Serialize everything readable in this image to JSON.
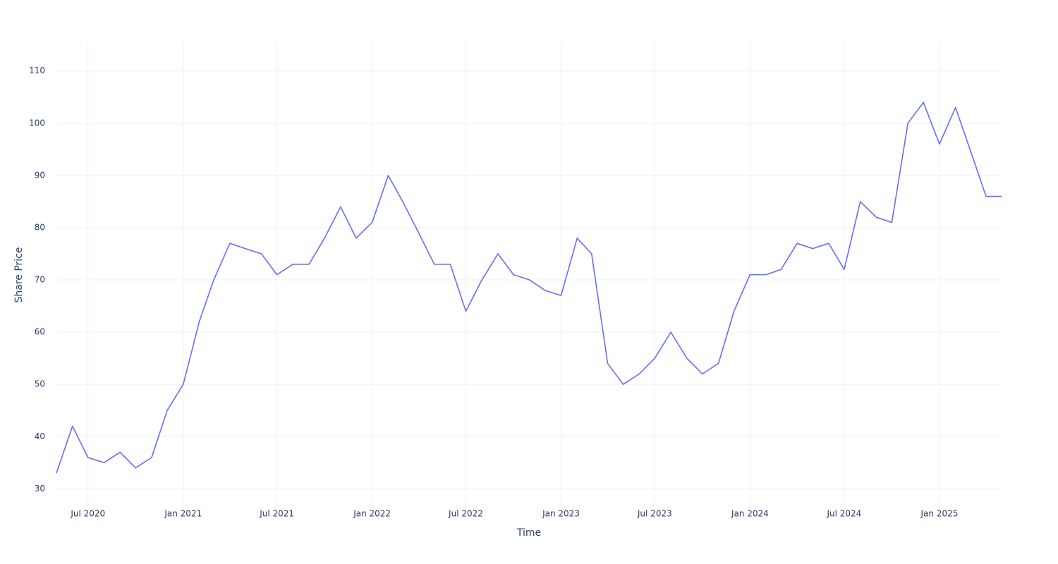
{
  "chart_data": {
    "type": "line",
    "x_label": "Time",
    "y_label": "Share Price",
    "x": [
      "2020-05",
      "2020-06",
      "2020-07",
      "2020-08",
      "2020-09",
      "2020-10",
      "2020-11",
      "2020-12",
      "2021-01",
      "2021-02",
      "2021-03",
      "2021-04",
      "2021-05",
      "2021-06",
      "2021-07",
      "2021-08",
      "2021-09",
      "2021-10",
      "2021-11",
      "2021-12",
      "2022-01",
      "2022-02",
      "2022-03",
      "2022-04",
      "2022-05",
      "2022-06",
      "2022-07",
      "2022-08",
      "2022-09",
      "2022-10",
      "2022-11",
      "2022-12",
      "2023-01",
      "2023-02",
      "2023-03",
      "2023-04",
      "2023-05",
      "2023-06",
      "2023-07",
      "2023-08",
      "2023-09",
      "2023-10",
      "2023-11",
      "2023-12",
      "2024-01",
      "2024-02",
      "2024-03",
      "2024-04",
      "2024-05",
      "2024-06",
      "2024-07",
      "2024-08",
      "2024-09",
      "2024-10",
      "2024-11",
      "2024-12",
      "2025-01",
      "2025-02",
      "2025-03",
      "2025-04",
      "2025-05"
    ],
    "values": [
      33,
      42,
      36,
      35,
      37,
      34,
      36,
      45,
      50,
      62,
      70,
      77,
      76,
      75,
      71,
      73,
      73,
      78,
      84,
      78,
      81,
      90,
      85,
      79,
      73,
      73,
      64,
      70,
      75,
      71,
      70,
      68,
      67,
      78,
      75,
      54,
      50,
      52,
      55,
      60,
      55,
      52,
      54,
      64,
      71,
      71,
      72,
      77,
      76,
      77,
      72,
      85,
      82,
      81,
      100,
      104,
      96,
      103,
      95,
      86,
      86
    ],
    "color": "#636efa",
    "xlim": [
      "2020-05",
      "2025-05"
    ],
    "xticks": [
      {
        "value": "2020-07",
        "label": "Jul 2020"
      },
      {
        "value": "2021-01",
        "label": "Jan 2021"
      },
      {
        "value": "2021-07",
        "label": "Jul 2021"
      },
      {
        "value": "2022-01",
        "label": "Jan 2022"
      },
      {
        "value": "2022-07",
        "label": "Jul 2022"
      },
      {
        "value": "2023-01",
        "label": "Jan 2023"
      },
      {
        "value": "2023-07",
        "label": "Jul 2023"
      },
      {
        "value": "2024-01",
        "label": "Jan 2024"
      },
      {
        "value": "2024-07",
        "label": "Jul 2024"
      },
      {
        "value": "2025-01",
        "label": "Jan 2025"
      }
    ],
    "ylim": [
      26.4,
      115.5
    ],
    "yticks": [
      30,
      40,
      50,
      60,
      70,
      80,
      90,
      100,
      110
    ],
    "grid": true
  }
}
